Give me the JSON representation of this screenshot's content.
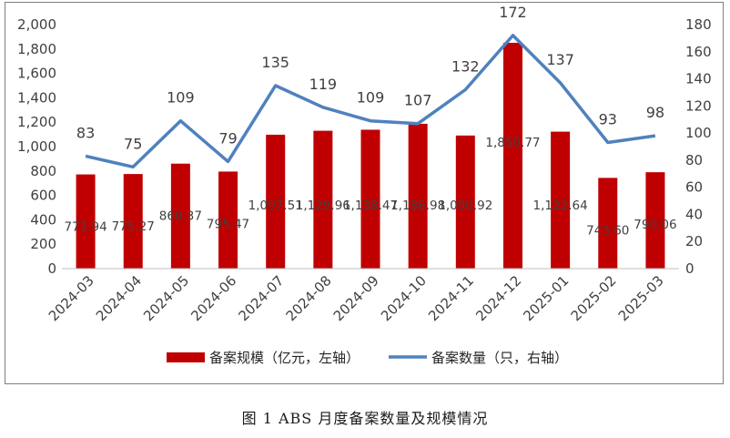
{
  "caption": "图 1  ABS 月度备案数量及规模情况",
  "colors": {
    "bar": "#c00000",
    "line": "#4f81bd",
    "axis_text": "#404040"
  },
  "chart_data": {
    "type": "bar",
    "categories": [
      "2024-03",
      "2024-04",
      "2024-05",
      "2024-06",
      "2024-07",
      "2024-08",
      "2024-09",
      "2024-10",
      "2024-11",
      "2024-12",
      "2025-01",
      "2025-02",
      "2025-03"
    ],
    "series": [
      {
        "name": "备案规模（亿元，左轴）",
        "type": "bar",
        "axis": "left",
        "values": [
          771.94,
          775.27,
          860.37,
          795.47,
          1097.51,
          1129.96,
          1138.47,
          1186.98,
          1090.92,
          1850.77,
          1122.64,
          743.6,
          790.06
        ],
        "labels": [
          "771.94",
          "775.27",
          "860.37",
          "795.47",
          "1,097.51",
          "1,129.96",
          "1,138.47",
          "1,186.98",
          "1,090.92",
          "1,850.77",
          "1,122.64",
          "743.60",
          "790.06"
        ]
      },
      {
        "name": "备案数量（只，右轴）",
        "type": "line",
        "axis": "right",
        "values": [
          83,
          75,
          109,
          79,
          135,
          119,
          109,
          107,
          132,
          172,
          137,
          93,
          98
        ],
        "labels": [
          "83",
          "75",
          "109",
          "79",
          "135",
          "119",
          "109",
          "107",
          "132",
          "172",
          "137",
          "93",
          "98"
        ]
      }
    ],
    "y_left": {
      "lim": [
        0,
        2000
      ],
      "ticks": [
        "0",
        "200",
        "400",
        "600",
        "800",
        "1,000",
        "1,200",
        "1,400",
        "1,600",
        "1,800",
        "2,000"
      ]
    },
    "y_right": {
      "lim": [
        0,
        180
      ],
      "ticks": [
        "0",
        "20",
        "40",
        "60",
        "80",
        "100",
        "120",
        "140",
        "160",
        "180"
      ]
    },
    "grid": false,
    "legend": "bottom"
  }
}
